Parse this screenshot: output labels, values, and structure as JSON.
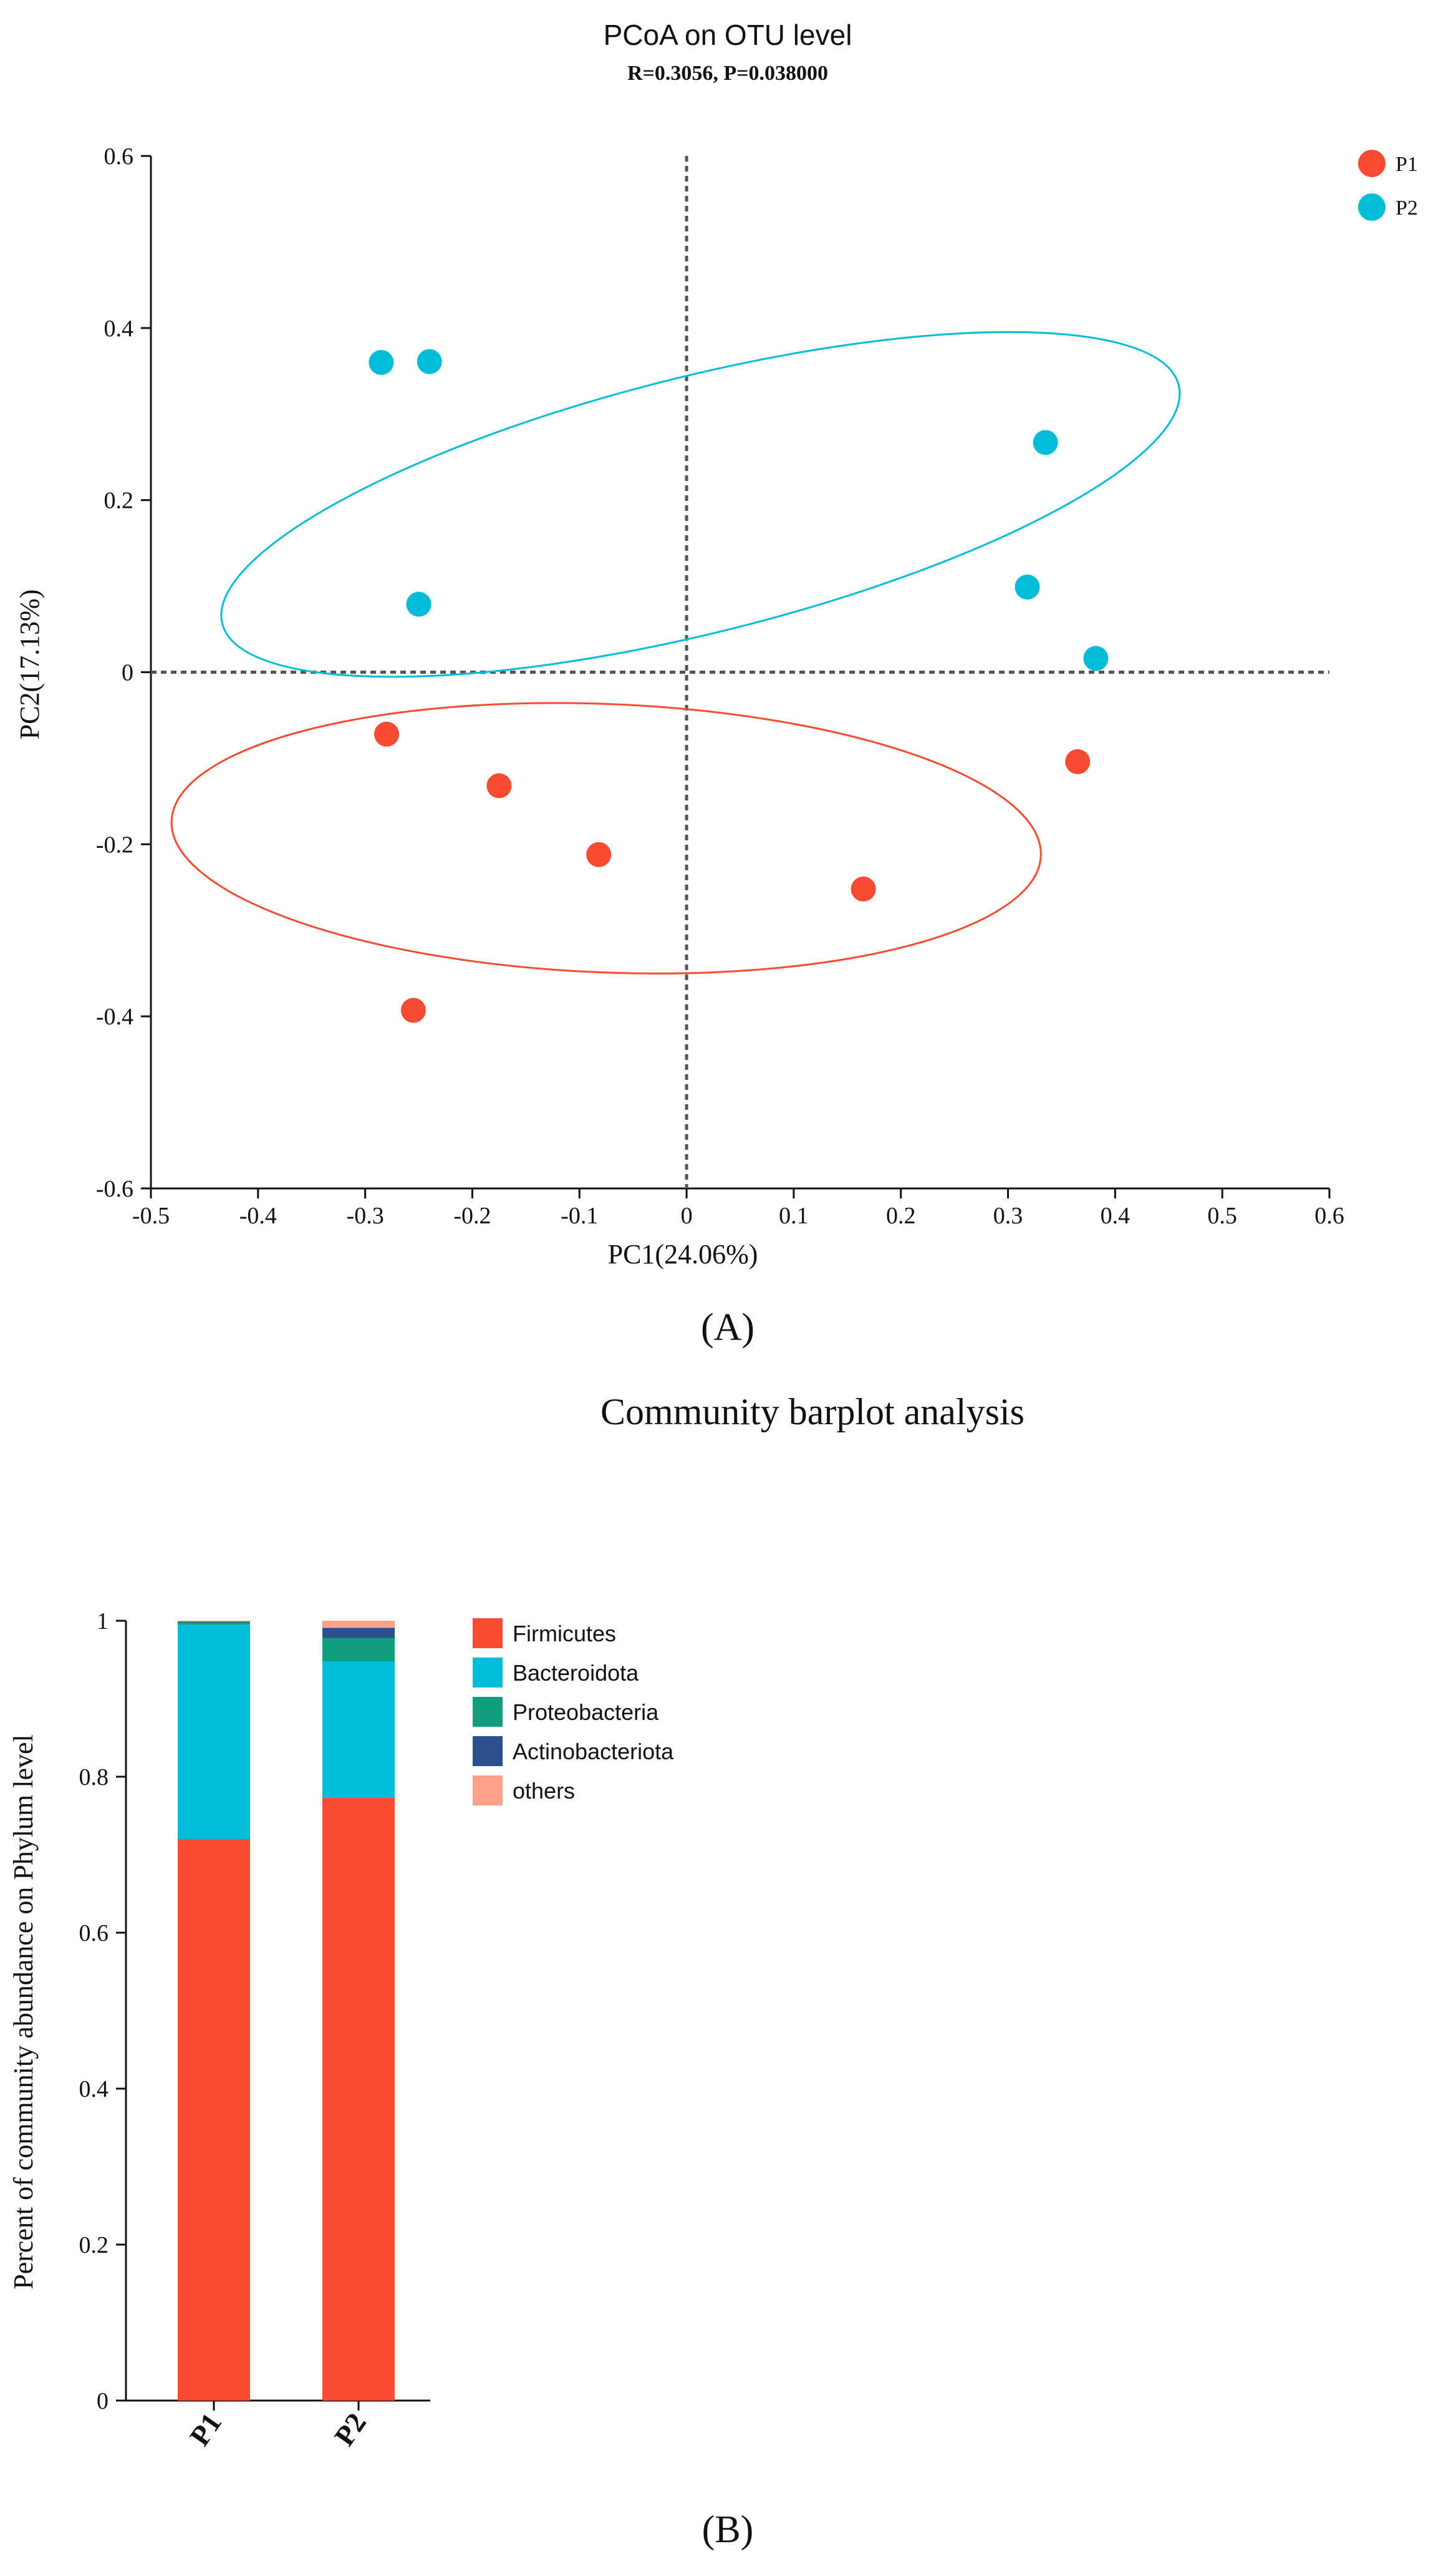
{
  "chart_data": [
    {
      "type": "scatter",
      "title": "PCoA on OTU level",
      "subtitle": "R=0.3056, P=0.038000",
      "xlabel": "PC1(24.06%)",
      "ylabel": "PC2(17.13%)",
      "xlim": [
        -0.5,
        0.6
      ],
      "ylim": [
        -0.6,
        0.6
      ],
      "xticks": [
        "-0.5",
        "-0.4",
        "-0.3",
        "-0.2",
        "-0.1",
        "0",
        "0.1",
        "0.2",
        "0.3",
        "0.4",
        "0.5",
        "0.6"
      ],
      "yticks": [
        "-0.6",
        "-0.4",
        "-0.2",
        "0",
        "0.2",
        "0.4",
        "0.6"
      ],
      "legend_position": "top-right",
      "panel_label": "(A)",
      "series": [
        {
          "name": "P1",
          "color": "#fa4b32",
          "points": [
            {
              "x": -0.28,
              "y": -0.072
            },
            {
              "x": -0.175,
              "y": -0.132
            },
            {
              "x": -0.082,
              "y": -0.212
            },
            {
              "x": 0.165,
              "y": -0.252
            },
            {
              "x": 0.365,
              "y": -0.104
            },
            {
              "x": -0.255,
              "y": -0.393
            }
          ],
          "ellipse": {
            "cx": -0.075,
            "cy": -0.193,
            "rx": 0.406,
            "ry": 0.156,
            "rotate_deg": -2.3
          }
        },
        {
          "name": "P2",
          "color": "#00bcd7",
          "points": [
            {
              "x": -0.285,
              "y": 0.36
            },
            {
              "x": -0.24,
              "y": 0.361
            },
            {
              "x": -0.25,
              "y": 0.079
            },
            {
              "x": 0.335,
              "y": 0.267
            },
            {
              "x": 0.318,
              "y": 0.099
            },
            {
              "x": 0.382,
              "y": 0.016
            }
          ],
          "ellipse": {
            "cx": 0.013,
            "cy": 0.195,
            "rx": 0.46,
            "ry": 0.149,
            "rotate_deg": 14
          }
        }
      ]
    },
    {
      "type": "bar",
      "stacked": true,
      "title": "Community barplot analysis",
      "xlabel": "",
      "ylabel": "Percent of community abundance on Phylum level",
      "ylim": [
        0,
        1
      ],
      "yticks": [
        "0",
        "0.2",
        "0.4",
        "0.6",
        "0.8",
        "1"
      ],
      "categories": [
        "P1",
        "P2"
      ],
      "legend_position": "right",
      "panel_label": "(B)",
      "series": [
        {
          "name": "Firmicutes",
          "color": "#fa4b32",
          "values": [
            0.72,
            0.773
          ]
        },
        {
          "name": "Bacteroidota",
          "color": "#00bcd7",
          "values": [
            0.275,
            0.175
          ]
        },
        {
          "name": "Proteobacteria",
          "color": "#0f9f7f",
          "values": [
            0.003,
            0.03
          ]
        },
        {
          "name": "Actinobacteriota",
          "color": "#2b4e8e",
          "values": [
            0.001,
            0.013
          ]
        },
        {
          "name": "others",
          "color": "#ffa08b",
          "values": [
            0.001,
            0.009
          ]
        }
      ]
    }
  ]
}
